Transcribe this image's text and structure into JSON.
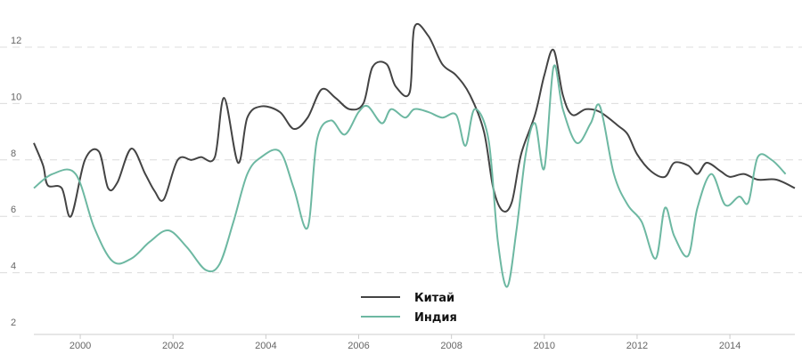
{
  "chart_data": {
    "type": "line",
    "title": "",
    "xlabel": "",
    "ylabel": "",
    "xlim": [
      1999.0,
      2015.4
    ],
    "ylim": [
      2,
      13.2
    ],
    "y_ticks": [
      2,
      4,
      6,
      8,
      10,
      12
    ],
    "x_ticks": [
      2000,
      2002,
      2004,
      2006,
      2008,
      2010,
      2012,
      2014
    ],
    "grid": "horizontal dashed",
    "legend_position": "bottom-center",
    "series": [
      {
        "name": "Китай",
        "color": "#444444",
        "points": [
          [
            1999.0,
            8.6
          ],
          [
            1999.2,
            7.8
          ],
          [
            1999.3,
            7.1
          ],
          [
            1999.6,
            7.0
          ],
          [
            1999.8,
            6.0
          ],
          [
            2000.1,
            8.0
          ],
          [
            2000.4,
            8.3
          ],
          [
            2000.6,
            7.0
          ],
          [
            2000.8,
            7.2
          ],
          [
            2001.1,
            8.4
          ],
          [
            2001.4,
            7.5
          ],
          [
            2001.6,
            6.9
          ],
          [
            2001.8,
            6.6
          ],
          [
            2002.1,
            8.0
          ],
          [
            2002.4,
            8.0
          ],
          [
            2002.6,
            8.1
          ],
          [
            2002.9,
            8.1
          ],
          [
            2003.1,
            10.2
          ],
          [
            2003.4,
            7.9
          ],
          [
            2003.6,
            9.5
          ],
          [
            2003.9,
            9.9
          ],
          [
            2004.3,
            9.7
          ],
          [
            2004.6,
            9.1
          ],
          [
            2004.9,
            9.5
          ],
          [
            2005.2,
            10.5
          ],
          [
            2005.5,
            10.2
          ],
          [
            2005.8,
            9.8
          ],
          [
            2006.1,
            10.0
          ],
          [
            2006.3,
            11.3
          ],
          [
            2006.6,
            11.4
          ],
          [
            2006.8,
            10.6
          ],
          [
            2007.1,
            10.4
          ],
          [
            2007.2,
            12.7
          ],
          [
            2007.5,
            12.4
          ],
          [
            2007.8,
            11.4
          ],
          [
            2008.1,
            11.0
          ],
          [
            2008.4,
            10.3
          ],
          [
            2008.7,
            9.0
          ],
          [
            2008.9,
            7.0
          ],
          [
            2009.1,
            6.2
          ],
          [
            2009.3,
            6.5
          ],
          [
            2009.5,
            8.2
          ],
          [
            2009.8,
            9.6
          ],
          [
            2010.0,
            11.0
          ],
          [
            2010.2,
            11.9
          ],
          [
            2010.4,
            10.3
          ],
          [
            2010.6,
            9.6
          ],
          [
            2010.9,
            9.8
          ],
          [
            2011.2,
            9.7
          ],
          [
            2011.6,
            9.2
          ],
          [
            2011.8,
            8.9
          ],
          [
            2012.0,
            8.2
          ],
          [
            2012.3,
            7.6
          ],
          [
            2012.6,
            7.4
          ],
          [
            2012.8,
            7.9
          ],
          [
            2013.1,
            7.8
          ],
          [
            2013.3,
            7.5
          ],
          [
            2013.5,
            7.9
          ],
          [
            2013.8,
            7.6
          ],
          [
            2014.0,
            7.4
          ],
          [
            2014.3,
            7.5
          ],
          [
            2014.6,
            7.3
          ],
          [
            2015.0,
            7.3
          ],
          [
            2015.4,
            7.0
          ]
        ]
      },
      {
        "name": "Индия",
        "color": "#6db8a2",
        "points": [
          [
            1999.0,
            7.0
          ],
          [
            1999.4,
            7.5
          ],
          [
            1999.9,
            7.5
          ],
          [
            2000.3,
            5.6
          ],
          [
            2000.7,
            4.4
          ],
          [
            2001.1,
            4.5
          ],
          [
            2001.5,
            5.1
          ],
          [
            2001.9,
            5.5
          ],
          [
            2002.3,
            4.9
          ],
          [
            2002.7,
            4.1
          ],
          [
            2003.0,
            4.3
          ],
          [
            2003.3,
            5.8
          ],
          [
            2003.6,
            7.5
          ],
          [
            2003.9,
            8.1
          ],
          [
            2004.3,
            8.3
          ],
          [
            2004.6,
            7.0
          ],
          [
            2004.9,
            5.6
          ],
          [
            2005.1,
            8.7
          ],
          [
            2005.4,
            9.4
          ],
          [
            2005.7,
            8.9
          ],
          [
            2006.0,
            9.7
          ],
          [
            2006.2,
            9.9
          ],
          [
            2006.5,
            9.3
          ],
          [
            2006.7,
            9.8
          ],
          [
            2007.0,
            9.5
          ],
          [
            2007.2,
            9.8
          ],
          [
            2007.5,
            9.7
          ],
          [
            2007.8,
            9.5
          ],
          [
            2008.1,
            9.6
          ],
          [
            2008.3,
            8.5
          ],
          [
            2008.5,
            9.8
          ],
          [
            2008.8,
            8.7
          ],
          [
            2009.0,
            5.1
          ],
          [
            2009.2,
            3.5
          ],
          [
            2009.4,
            5.5
          ],
          [
            2009.6,
            8.2
          ],
          [
            2009.8,
            9.3
          ],
          [
            2010.0,
            7.7
          ],
          [
            2010.2,
            11.3
          ],
          [
            2010.4,
            9.8
          ],
          [
            2010.7,
            8.6
          ],
          [
            2011.0,
            9.3
          ],
          [
            2011.2,
            9.9
          ],
          [
            2011.5,
            7.5
          ],
          [
            2011.8,
            6.4
          ],
          [
            2012.1,
            5.8
          ],
          [
            2012.4,
            4.5
          ],
          [
            2012.6,
            6.3
          ],
          [
            2012.8,
            5.3
          ],
          [
            2013.1,
            4.6
          ],
          [
            2013.3,
            6.3
          ],
          [
            2013.6,
            7.5
          ],
          [
            2013.9,
            6.4
          ],
          [
            2014.2,
            6.7
          ],
          [
            2014.4,
            6.5
          ],
          [
            2014.6,
            8.1
          ],
          [
            2014.9,
            8.0
          ],
          [
            2015.2,
            7.5
          ]
        ]
      }
    ]
  }
}
